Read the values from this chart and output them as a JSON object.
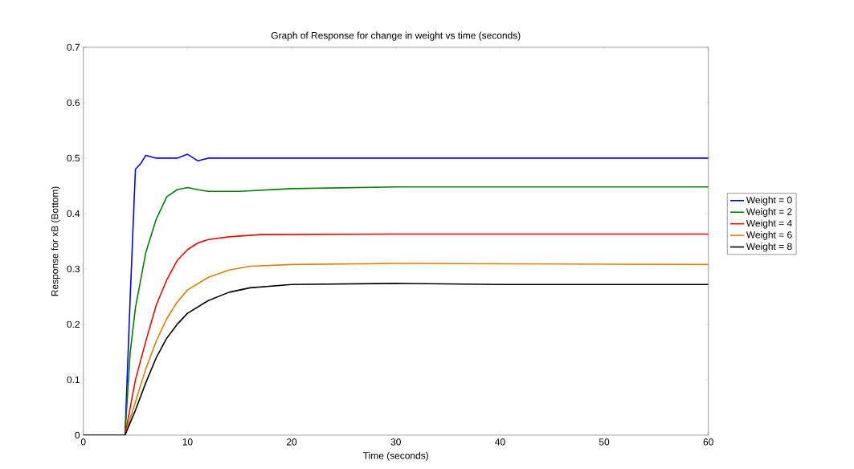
{
  "chart_data": {
    "type": "line",
    "title": "Graph of Response for change in weight vs time (seconds)",
    "xlabel": "Time (seconds)",
    "ylabel": "Response for xB (Bottom)",
    "xlim": [
      0,
      60
    ],
    "ylim": [
      0,
      0.7
    ],
    "xticks": [
      0,
      10,
      20,
      30,
      40,
      50,
      60
    ],
    "yticks": [
      0,
      0.1,
      0.2,
      0.3,
      0.4,
      0.5,
      0.6,
      0.7
    ],
    "grid": false,
    "legend": "right",
    "marker": "none",
    "line_style": "solid",
    "series": [
      {
        "name": "Weight = 0",
        "color": "#0000ff",
        "x": [
          0,
          4,
          4.5,
          5,
          5.5,
          6,
          7,
          9,
          10,
          11,
          12,
          15,
          60
        ],
        "values": [
          0,
          0,
          0.25,
          0.48,
          0.49,
          0.505,
          0.5,
          0.5,
          0.507,
          0.495,
          0.5,
          0.5,
          0.5
        ]
      },
      {
        "name": "Weight = 2",
        "color": "#008000",
        "x": [
          0,
          4,
          4.5,
          5,
          6,
          7,
          8,
          9,
          10,
          11,
          12,
          15,
          20,
          30,
          60
        ],
        "values": [
          0,
          0,
          0.15,
          0.23,
          0.33,
          0.39,
          0.43,
          0.443,
          0.447,
          0.443,
          0.44,
          0.44,
          0.445,
          0.448,
          0.448
        ]
      },
      {
        "name": "Weight = 4",
        "color": "#ff0000",
        "x": [
          0,
          4,
          5,
          6,
          7,
          8,
          9,
          10,
          11,
          12,
          14,
          17,
          30,
          55,
          60
        ],
        "values": [
          0,
          0,
          0.1,
          0.17,
          0.235,
          0.28,
          0.315,
          0.335,
          0.347,
          0.353,
          0.358,
          0.362,
          0.363,
          0.363,
          0.363
        ]
      },
      {
        "name": "Weight = 6",
        "color": "#e08000",
        "x": [
          0,
          4,
          5,
          6,
          7,
          8,
          9,
          10,
          12,
          14,
          16,
          20,
          30,
          60
        ],
        "values": [
          0,
          0,
          0.06,
          0.12,
          0.17,
          0.21,
          0.24,
          0.262,
          0.285,
          0.298,
          0.305,
          0.308,
          0.31,
          0.308
        ]
      },
      {
        "name": "Weight = 8",
        "color": "#000000",
        "x": [
          0,
          4,
          5,
          6,
          7,
          8,
          9,
          10,
          12,
          14,
          16,
          20,
          30,
          40,
          60
        ],
        "values": [
          0,
          0,
          0.045,
          0.095,
          0.14,
          0.175,
          0.2,
          0.22,
          0.243,
          0.258,
          0.266,
          0.272,
          0.274,
          0.272,
          0.272
        ]
      }
    ]
  }
}
